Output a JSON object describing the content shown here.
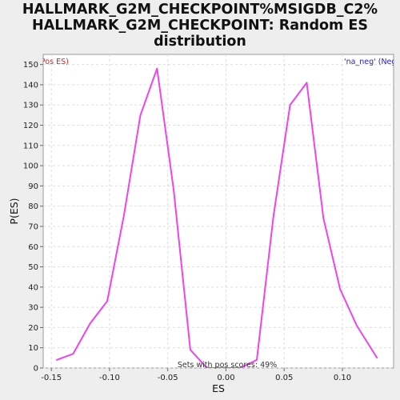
{
  "title_lines": [
    "HALLMARK_G2M_CHECKPOINT%MSIGDB_C2%",
    "HALLMARK_G2M_CHECKPOINT: Random ES",
    "distribution"
  ],
  "annotations": {
    "pos_label": "'pos' (Pos ES)",
    "neg_label": "'na_neg' (Neg ES)",
    "footer": "Sets with pos scores: 49%"
  },
  "colors": {
    "line": "#ee44ee",
    "pos_label": "#dd2222",
    "neg_label": "#2222cc",
    "grid": "#dddddd"
  },
  "chart_data": {
    "type": "line",
    "xlabel": "ES",
    "ylabel": "P(ES)",
    "xlim": [
      -0.157,
      0.144
    ],
    "ylim": [
      0,
      155
    ],
    "xticks": [
      -0.15,
      -0.1,
      -0.05,
      0.0,
      0.05,
      0.1
    ],
    "xtick_labels": [
      "-0.15",
      "-0.10",
      "-0.05",
      "0.00",
      "0.05",
      "0.10"
    ],
    "yticks": [
      0,
      10,
      20,
      30,
      40,
      50,
      60,
      70,
      80,
      90,
      100,
      110,
      120,
      130,
      140,
      150
    ],
    "grid": true,
    "series": [
      {
        "x": [
          -0.1455,
          -0.1313,
          -0.1167,
          -0.102,
          -0.0878,
          -0.0735,
          -0.0592,
          -0.0449,
          -0.0306,
          -0.0164,
          -0.0021,
          0.0122,
          0.0265,
          0.0408,
          0.0551,
          0.0694,
          0.0837,
          0.098,
          0.1123,
          0.1298
        ],
        "y": [
          4,
          7,
          22,
          33,
          75,
          125,
          148,
          88,
          9,
          0,
          0,
          0,
          4,
          75,
          130,
          141,
          74,
          39,
          21,
          5
        ]
      }
    ]
  }
}
